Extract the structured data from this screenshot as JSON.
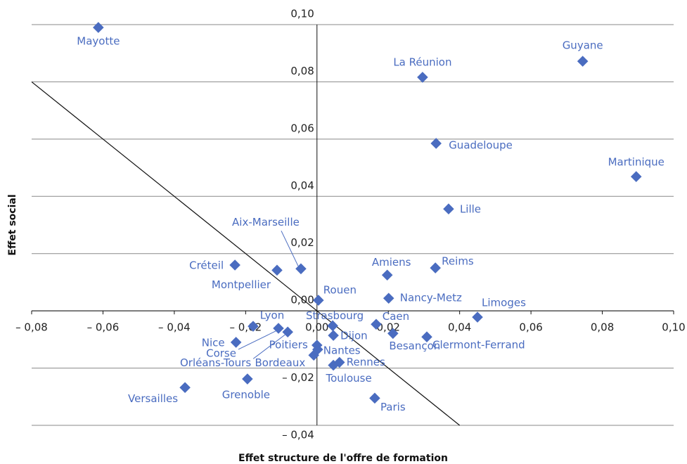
{
  "chart_data": {
    "type": "scatter",
    "x_label": "Effet structure de l'offre de formation",
    "y_label": "Effet social",
    "color": "#4a6cc0",
    "xlim": [
      -0.08,
      0.1
    ],
    "ylim": [
      -0.04,
      0.1
    ],
    "xticks": [
      {
        "value": -0.08,
        "label": "– 0,08"
      },
      {
        "value": -0.06,
        "label": "– 0,06"
      },
      {
        "value": -0.04,
        "label": "– 0,04"
      },
      {
        "value": -0.02,
        "label": "– 0,02"
      },
      {
        "value": 0,
        "label": "0,00"
      },
      {
        "value": 0.02,
        "label": "0,02"
      },
      {
        "value": 0.04,
        "label": "0,04"
      },
      {
        "value": 0.06,
        "label": "0,06"
      },
      {
        "value": 0.08,
        "label": "0,08"
      },
      {
        "value": 0.1,
        "label": "0,10"
      }
    ],
    "yticks": [
      {
        "value": -0.04,
        "label": "– 0,04"
      },
      {
        "value": -0.02,
        "label": "– 0,02"
      },
      {
        "value": 0,
        "label": "0,00"
      },
      {
        "value": 0.02,
        "label": "0,02"
      },
      {
        "value": 0.04,
        "label": "0,04"
      },
      {
        "value": 0.06,
        "label": "0,06"
      },
      {
        "value": 0.08,
        "label": "0,08"
      },
      {
        "value": 0.1,
        "label": "0,10"
      }
    ],
    "grid": true,
    "reference_line": {
      "x": [
        -0.08,
        0.04
      ],
      "y": [
        0.08,
        -0.04
      ]
    },
    "point_labels": [
      "Mayotte",
      "Guyane",
      "La Réunion",
      "Guadeloupe",
      "Martinique",
      "Lille",
      "Aix-Marseille",
      "Créteil",
      "Montpellier",
      "Amiens",
      "Reims",
      "Rouen",
      "Nancy-Metz",
      "Limoges",
      "Strasbourg",
      "Caen",
      "Dijon",
      "Besançon",
      "Clermont-Ferrand",
      "Lyon",
      "Nice",
      "Corse",
      "Orléans-Tours",
      "Poitiers",
      "Nantes",
      "Bordeaux",
      "Rennes",
      "Toulouse",
      "Paris",
      "Versailles",
      "Grenoble"
    ],
    "x": [
      -0.0613,
      0.0745,
      0.0296,
      0.0334,
      0.0895,
      0.0369,
      -0.0045,
      -0.023,
      -0.0112,
      0.0197,
      0.0332,
      0.0004,
      0.0201,
      0.045,
      0.0044,
      0.0166,
      0.0046,
      0.0213,
      0.0308,
      -0.0179,
      -0.0227,
      -0.0108,
      -0.0082,
      0.0,
      0.0002,
      -0.0009,
      0.0063,
      0.0046,
      0.0162,
      -0.037,
      -0.0195
    ],
    "y": [
      0.099,
      0.0872,
      0.0816,
      0.0585,
      0.0469,
      0.0356,
      0.0147,
      0.016,
      0.0142,
      0.0125,
      0.015,
      0.0037,
      0.0044,
      -0.0022,
      -0.0052,
      -0.0047,
      -0.0086,
      -0.0079,
      -0.0091,
      -0.0054,
      -0.011,
      -0.0061,
      -0.0074,
      -0.012,
      -0.0135,
      -0.0155,
      -0.018,
      -0.019,
      -0.0305,
      -0.0268,
      -0.0238
    ]
  }
}
